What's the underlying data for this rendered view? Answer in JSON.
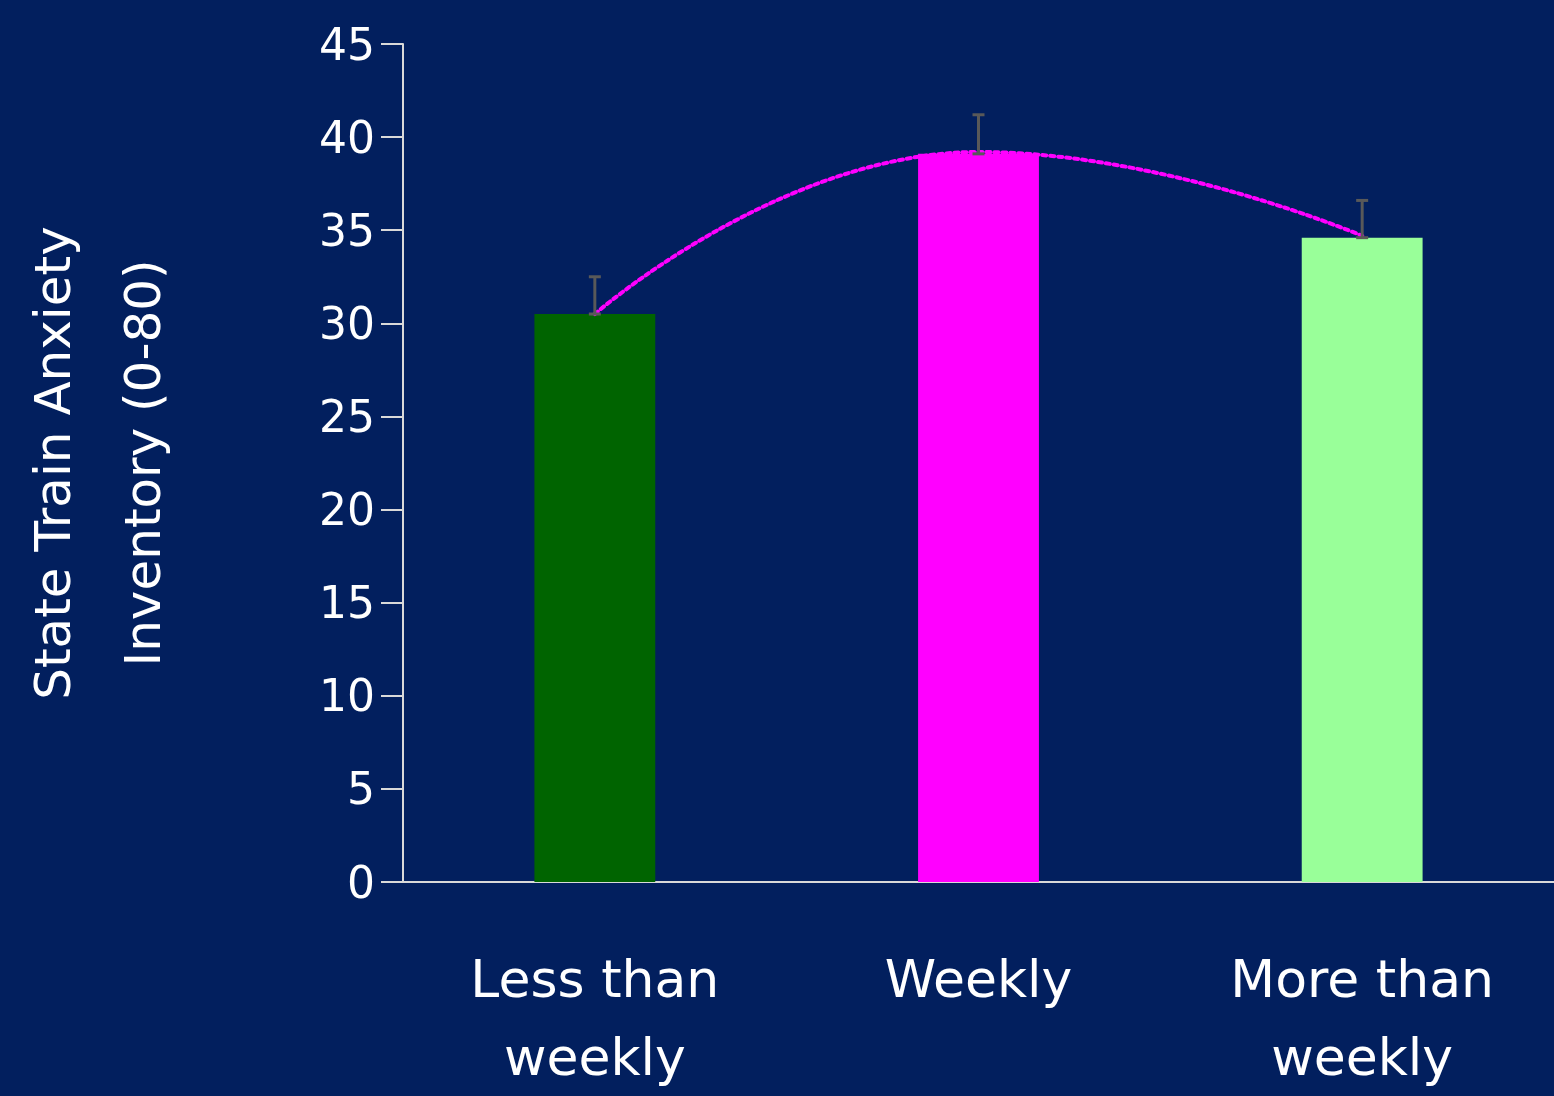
{
  "chart_data": {
    "type": "bar",
    "ylabel": "State Train Anxiety\nInventory (0-80)",
    "categories": [
      "Less than\nweekly",
      "Weekly",
      "More than\nweekly"
    ],
    "ylim": [
      0,
      45
    ],
    "yticks": [
      0,
      5,
      10,
      15,
      20,
      25,
      30,
      35,
      40,
      45
    ],
    "grid": false,
    "series": [
      {
        "values": [
          30.5,
          39.1,
          34.6
        ],
        "colors": [
          "#006400",
          "#ff00ff",
          "#99ff99"
        ],
        "errors": [
          [
            30.5,
            32.5
          ],
          [
            39.1,
            41.2
          ],
          [
            34.6,
            36.6
          ]
        ]
      },
      {
        "type": "line",
        "x": [
          "Less than\nweekly",
          "Weekly",
          "More than\nweekly"
        ],
        "values": [
          30.5,
          39.2,
          34.7
        ],
        "color": "#ff00ff",
        "line_style": "dotted",
        "marker": "none"
      }
    ]
  }
}
